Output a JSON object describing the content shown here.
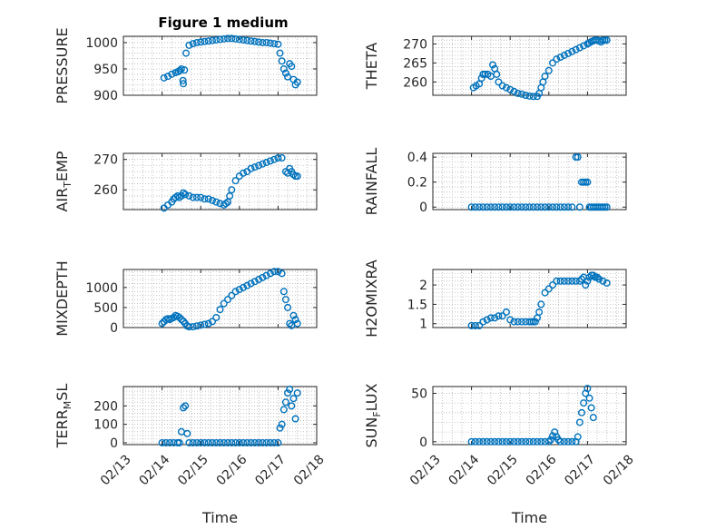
{
  "colors": {
    "marker": "#0072BD",
    "axis": "#262626",
    "grid": "#b5b5b5",
    "background": "#ffffff"
  },
  "chart_data": [
    {
      "type": "scatter",
      "title": "Figure 1 medium",
      "ylabel": "PRESSURE",
      "xlabel": "",
      "xlim": [
        "02/13",
        "02/18"
      ],
      "ylim": [
        900,
        1012
      ],
      "yticks": [
        900,
        950,
        1000
      ],
      "xticks": [],
      "grid": "minor-dotted",
      "series": [
        {
          "x": [
            14.05,
            14.15,
            14.25,
            14.35,
            14.42,
            14.46,
            14.5,
            14.54,
            14.55,
            14.58,
            14.62,
            14.7,
            14.8,
            14.9,
            15.0,
            15.1,
            15.2,
            15.3,
            15.4,
            15.5,
            15.6,
            15.7,
            15.8,
            15.9,
            16.0,
            16.1,
            16.2,
            16.3,
            16.4,
            16.5,
            16.6,
            16.7,
            16.8,
            16.9,
            17.0,
            17.05,
            17.1,
            17.15,
            17.2,
            17.25,
            17.3,
            17.35,
            17.4,
            17.45,
            17.5
          ],
          "y": [
            933,
            936,
            940,
            943,
            945,
            947,
            950,
            928,
            922,
            948,
            980,
            995,
            998,
            1000,
            1001,
            1002,
            1003,
            1004,
            1005,
            1006,
            1007,
            1008,
            1008,
            1007,
            1006,
            1005,
            1004,
            1003,
            1002,
            1001,
            1000,
            1000,
            999,
            998,
            997,
            980,
            965,
            950,
            942,
            935,
            960,
            955,
            930,
            920,
            925
          ]
        }
      ]
    },
    {
      "type": "scatter",
      "ylabel": "THETA",
      "xlabel": "",
      "xlim": [
        "02/13",
        "02/18"
      ],
      "ylim": [
        256.5,
        272
      ],
      "yticks": [
        260,
        265,
        270
      ],
      "xticks": [],
      "grid": "minor-dotted",
      "series": [
        {
          "x": [
            14.05,
            14.12,
            14.2,
            14.26,
            14.3,
            14.35,
            14.42,
            14.5,
            14.55,
            14.6,
            14.65,
            14.7,
            14.8,
            14.9,
            15.0,
            15.1,
            15.2,
            15.3,
            15.4,
            15.5,
            15.6,
            15.7,
            15.75,
            15.8,
            15.85,
            15.9,
            16.0,
            16.1,
            16.2,
            16.3,
            16.4,
            16.5,
            16.6,
            16.7,
            16.8,
            16.9,
            17.0,
            17.05,
            17.1,
            17.15,
            17.2,
            17.25,
            17.3,
            17.35,
            17.4,
            17.45,
            17.5
          ],
          "y": [
            258.5,
            259,
            259.5,
            261,
            262,
            262,
            262,
            261.5,
            264.5,
            263.5,
            262,
            260,
            259,
            258.5,
            258,
            257.5,
            257,
            256.8,
            256.5,
            256.3,
            256.2,
            256.2,
            257,
            258.5,
            260,
            261.5,
            263,
            265,
            266,
            266.5,
            267,
            267.5,
            268,
            268.5,
            269,
            269.5,
            270,
            270.3,
            270.6,
            270.8,
            271,
            271,
            270.8,
            270.5,
            271,
            271,
            271
          ]
        }
      ]
    },
    {
      "type": "scatter",
      "ylabel": "AIR_TEMP",
      "ylabel_main": "AIR",
      "ylabel_sub": "T",
      "ylabel_rest": "EMP",
      "xlabel": "",
      "xlim": [
        "02/13",
        "02/18"
      ],
      "ylim": [
        253.5,
        272
      ],
      "yticks": [
        260,
        270
      ],
      "xticks": [],
      "grid": "minor-dotted",
      "series": [
        {
          "x": [
            14.05,
            14.15,
            14.25,
            14.3,
            14.35,
            14.4,
            14.45,
            14.5,
            14.55,
            14.6,
            14.7,
            14.8,
            14.9,
            15.0,
            15.1,
            15.2,
            15.3,
            15.4,
            15.5,
            15.6,
            15.65,
            15.7,
            15.75,
            15.8,
            15.9,
            16.0,
            16.1,
            16.2,
            16.3,
            16.4,
            16.5,
            16.6,
            16.7,
            16.8,
            16.9,
            17.0,
            17.1,
            17.2,
            17.25,
            17.3,
            17.35,
            17.4,
            17.45,
            17.5
          ],
          "y": [
            254,
            255,
            256,
            257,
            257.5,
            258,
            257.5,
            258,
            259,
            258.5,
            258,
            257.5,
            257.5,
            257.5,
            257,
            257,
            256.5,
            256,
            255.5,
            255,
            255.5,
            256,
            258,
            260,
            263,
            264.5,
            265.5,
            266,
            267,
            267.5,
            268,
            268.5,
            269,
            269.5,
            270,
            270.5,
            270.5,
            266,
            265.5,
            267,
            266,
            265,
            264.5,
            264.5
          ]
        }
      ]
    },
    {
      "type": "scatter",
      "ylabel": "RAINFALL",
      "xlabel": "",
      "xlim": [
        "02/13",
        "02/18"
      ],
      "ylim": [
        -0.02,
        0.43
      ],
      "yticks": [
        0,
        0.2,
        0.4
      ],
      "xticks": [],
      "grid": "minor-dotted",
      "series": [
        {
          "x": [
            14.0,
            14.1,
            14.2,
            14.3,
            14.4,
            14.5,
            14.6,
            14.7,
            14.8,
            14.9,
            15.0,
            15.1,
            15.2,
            15.3,
            15.4,
            15.5,
            15.6,
            15.7,
            15.8,
            15.9,
            16.0,
            16.1,
            16.2,
            16.3,
            16.4,
            16.5,
            16.6,
            16.7,
            16.75,
            16.8,
            16.85,
            16.9,
            16.95,
            17.0,
            17.05,
            17.1,
            17.15,
            17.2,
            17.25,
            17.3,
            17.35,
            17.4,
            17.45,
            17.5
          ],
          "y": [
            0,
            0,
            0,
            0,
            0,
            0,
            0,
            0,
            0,
            0,
            0,
            0,
            0,
            0,
            0,
            0,
            0,
            0,
            0,
            0,
            0,
            0,
            0,
            0,
            0,
            0,
            0,
            0.4,
            0.4,
            0,
            0.2,
            0.2,
            0.2,
            0.2,
            0,
            0,
            0,
            0,
            0,
            0,
            0,
            0,
            0,
            0
          ]
        }
      ]
    },
    {
      "type": "scatter",
      "ylabel": "MIXDEPTH",
      "xlabel": "",
      "xlim": [
        "02/13",
        "02/18"
      ],
      "ylim": [
        0,
        1450
      ],
      "yticks": [
        0,
        500,
        1000
      ],
      "xticks": [],
      "grid": "minor-dotted",
      "series": [
        {
          "x": [
            14.0,
            14.05,
            14.1,
            14.15,
            14.2,
            14.25,
            14.3,
            14.35,
            14.4,
            14.45,
            14.5,
            14.55,
            14.6,
            14.65,
            14.7,
            14.8,
            14.9,
            15.0,
            15.1,
            15.2,
            15.3,
            15.4,
            15.5,
            15.6,
            15.7,
            15.8,
            15.9,
            16.0,
            16.1,
            16.2,
            16.3,
            16.4,
            16.5,
            16.6,
            16.7,
            16.8,
            16.9,
            17.0,
            17.1,
            17.15,
            17.2,
            17.25,
            17.3,
            17.35,
            17.4,
            17.45,
            17.5
          ],
          "y": [
            100,
            150,
            200,
            220,
            200,
            230,
            250,
            300,
            280,
            250,
            200,
            160,
            100,
            40,
            20,
            20,
            40,
            60,
            80,
            100,
            150,
            250,
            450,
            600,
            700,
            800,
            900,
            950,
            1000,
            1050,
            1100,
            1150,
            1200,
            1250,
            1300,
            1350,
            1400,
            1400,
            1350,
            900,
            700,
            500,
            100,
            50,
            300,
            200,
            100
          ]
        }
      ]
    },
    {
      "type": "scatter",
      "ylabel": "H2OMIXRA",
      "xlabel": "",
      "xlim": [
        "02/13",
        "02/18"
      ],
      "ylim": [
        0.9,
        2.4
      ],
      "yticks": [
        1,
        1.5,
        2
      ],
      "xticks": [],
      "grid": "minor-dotted",
      "series": [
        {
          "x": [
            14.0,
            14.1,
            14.2,
            14.3,
            14.4,
            14.5,
            14.6,
            14.7,
            14.8,
            14.9,
            15.0,
            15.1,
            15.2,
            15.3,
            15.4,
            15.5,
            15.55,
            15.6,
            15.65,
            15.7,
            15.75,
            15.8,
            15.9,
            16.0,
            16.1,
            16.2,
            16.3,
            16.4,
            16.5,
            16.6,
            16.7,
            16.8,
            16.85,
            16.9,
            16.95,
            17.0,
            17.05,
            17.1,
            17.15,
            17.2,
            17.25,
            17.3,
            17.4,
            17.5
          ],
          "y": [
            0.95,
            0.95,
            0.95,
            1.05,
            1.1,
            1.15,
            1.15,
            1.2,
            1.2,
            1.3,
            1.1,
            1.05,
            1.05,
            1.05,
            1.05,
            1.05,
            1.05,
            1.05,
            1.05,
            1.15,
            1.3,
            1.5,
            1.8,
            1.9,
            2.0,
            2.1,
            2.1,
            2.1,
            2.1,
            2.1,
            2.1,
            2.1,
            2.15,
            2.2,
            2.0,
            2.1,
            2.2,
            2.25,
            2.25,
            2.2,
            2.2,
            2.15,
            2.1,
            2.05
          ]
        }
      ]
    },
    {
      "type": "scatter",
      "ylabel": "TERR_MSL",
      "ylabel_main": "TERR",
      "ylabel_sub": "M",
      "ylabel_rest": "SL",
      "xlabel": "Time",
      "xlim": [
        "02/13",
        "02/18"
      ],
      "ylim": [
        -10,
        305
      ],
      "yticks": [
        0,
        100,
        200
      ],
      "xticks": [
        "02/13",
        "02/14",
        "02/15",
        "02/16",
        "02/17",
        "02/18"
      ],
      "grid": "minor-dotted",
      "series": [
        {
          "x": [
            14.0,
            14.1,
            14.2,
            14.3,
            14.4,
            14.45,
            14.5,
            14.55,
            14.6,
            14.65,
            14.7,
            14.8,
            14.9,
            15.0,
            15.1,
            15.2,
            15.3,
            15.4,
            15.5,
            15.6,
            15.7,
            15.8,
            15.9,
            16.0,
            16.1,
            16.2,
            16.3,
            16.4,
            16.5,
            16.6,
            16.7,
            16.8,
            16.9,
            17.0,
            17.05,
            17.1,
            17.15,
            17.2,
            17.25,
            17.3,
            17.35,
            17.4,
            17.45,
            17.5
          ],
          "y": [
            0,
            0,
            0,
            0,
            0,
            0,
            60,
            190,
            200,
            50,
            0,
            0,
            0,
            0,
            0,
            0,
            0,
            0,
            0,
            0,
            0,
            0,
            0,
            0,
            0,
            0,
            0,
            0,
            0,
            0,
            0,
            0,
            0,
            0,
            80,
            100,
            180,
            220,
            270,
            290,
            200,
            240,
            130,
            270
          ]
        }
      ]
    },
    {
      "type": "scatter",
      "ylabel": "SUN_FLUX",
      "ylabel_main": "SUN",
      "ylabel_sub": "F",
      "ylabel_rest": "LUX",
      "xlabel": "Time",
      "xlim": [
        "02/13",
        "02/18"
      ],
      "ylim": [
        -3,
        57
      ],
      "yticks": [
        0,
        50
      ],
      "xticks": [
        "02/13",
        "02/14",
        "02/15",
        "02/16",
        "02/17",
        "02/18"
      ],
      "grid": "minor-dotted",
      "series": [
        {
          "x": [
            14.0,
            14.1,
            14.2,
            14.3,
            14.4,
            14.5,
            14.6,
            14.7,
            14.8,
            14.9,
            15.0,
            15.1,
            15.2,
            15.3,
            15.4,
            15.5,
            15.6,
            15.7,
            15.8,
            15.9,
            16.0,
            16.05,
            16.1,
            16.15,
            16.2,
            16.25,
            16.3,
            16.4,
            16.5,
            16.6,
            16.7,
            16.75,
            16.8,
            16.85,
            16.9,
            16.95,
            17.0,
            17.05,
            17.1,
            17.15
          ],
          "y": [
            0,
            0,
            0,
            0,
            0,
            0,
            0,
            0,
            0,
            0,
            0,
            0,
            0,
            0,
            0,
            0,
            0,
            0,
            0,
            0,
            0,
            2,
            6,
            10,
            5,
            2,
            0,
            0,
            0,
            0,
            0,
            5,
            20,
            30,
            40,
            50,
            55,
            45,
            35,
            25
          ]
        }
      ]
    }
  ]
}
